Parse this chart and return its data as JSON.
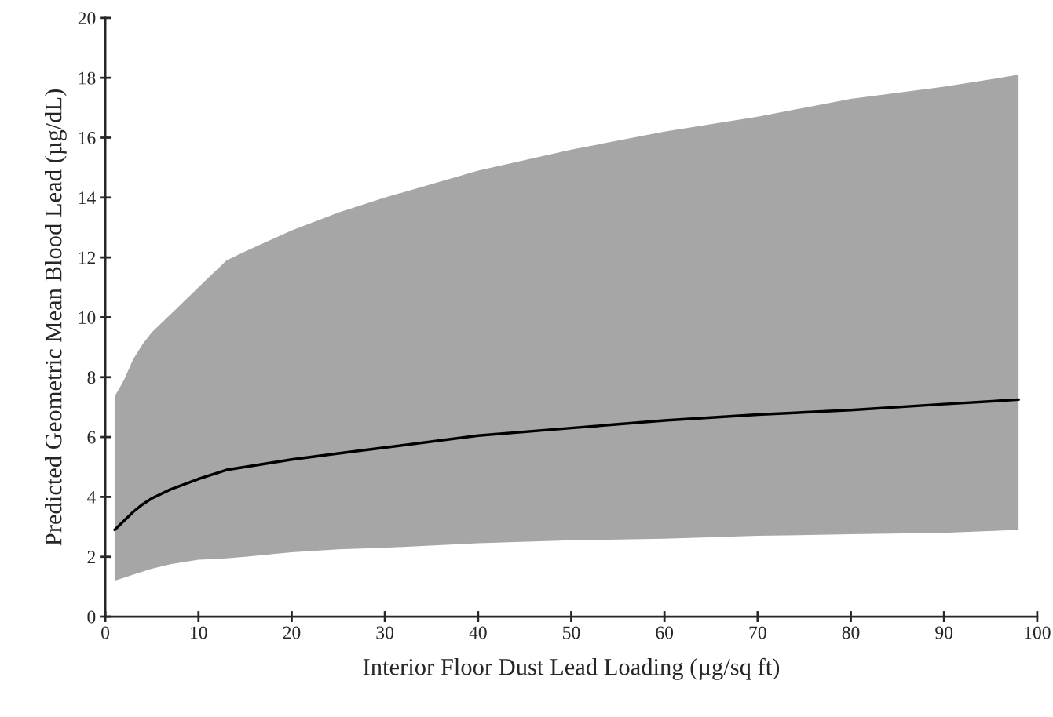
{
  "chart_data": {
    "type": "line",
    "xlabel": "Interior Floor Dust Lead Loading (µg/sq ft)",
    "ylabel": "Predicted Geometric Mean Blood Lead (µg/dL)",
    "x": [
      1,
      2,
      3,
      4,
      5,
      7,
      10,
      13,
      15,
      20,
      25,
      30,
      40,
      50,
      60,
      70,
      80,
      90,
      98
    ],
    "series": [
      {
        "color": "#000000",
        "values": [
          2.9,
          3.2,
          3.5,
          3.75,
          3.95,
          4.25,
          4.6,
          4.9,
          5.0,
          5.25,
          5.45,
          5.65,
          6.05,
          6.3,
          6.55,
          6.75,
          6.9,
          7.1,
          7.25
        ],
        "lower": [
          1.2,
          1.3,
          1.4,
          1.5,
          1.6,
          1.75,
          1.9,
          1.95,
          2.0,
          2.15,
          2.25,
          2.3,
          2.45,
          2.55,
          2.6,
          2.7,
          2.75,
          2.8,
          2.9
        ],
        "upper": [
          7.35,
          7.9,
          8.6,
          9.1,
          9.5,
          10.1,
          11.0,
          11.9,
          12.2,
          12.9,
          13.5,
          14.0,
          14.9,
          15.6,
          16.2,
          16.7,
          17.3,
          17.7,
          18.1
        ]
      }
    ],
    "xlim": [
      0,
      100
    ],
    "xticks": [
      0,
      10,
      20,
      30,
      40,
      50,
      60,
      70,
      80,
      90,
      100
    ],
    "ylim": [
      0,
      20
    ],
    "yticks": [
      0,
      2,
      4,
      6,
      8,
      10,
      12,
      14,
      16,
      18,
      20
    ],
    "grid": false,
    "legend": false,
    "marker": "none",
    "line_style": "solid"
  }
}
